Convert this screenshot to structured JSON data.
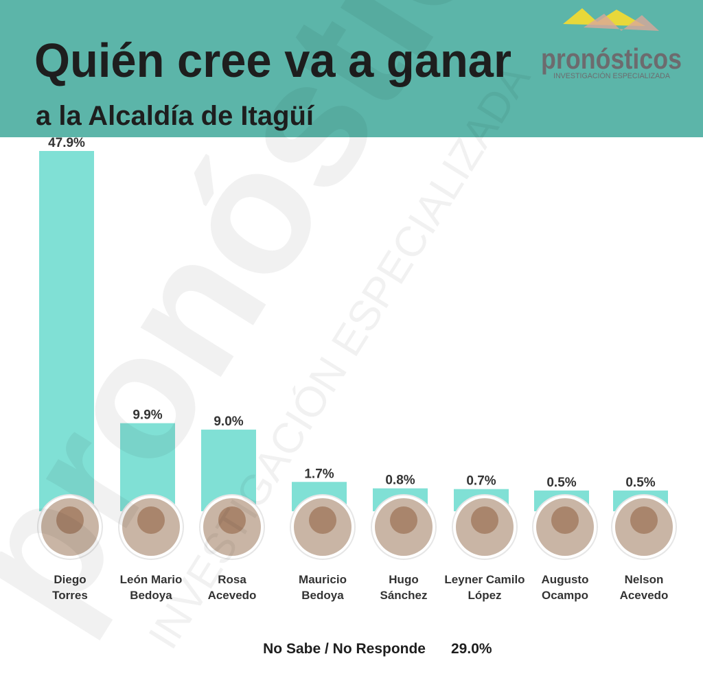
{
  "chart_data": {
    "type": "bar",
    "title": "Quién cree va a ganar",
    "subtitle": "a la Alcaldía de Itagüí",
    "brand": "pronósticos",
    "brand_tagline": "INVESTIGACIÓN ESPECIALIZADA",
    "categories": [
      [
        "Diego",
        "Torres"
      ],
      [
        "León Mario",
        "Bedoya"
      ],
      [
        "Rosa",
        "Acevedo"
      ],
      [
        "Mauricio",
        "Bedoya"
      ],
      [
        "Hugo",
        "Sánchez"
      ],
      [
        "Leyner Camilo",
        "López"
      ],
      [
        "Augusto",
        "Ocampo"
      ],
      [
        "Nelson",
        "Acevedo"
      ]
    ],
    "values": [
      47.9,
      9.9,
      9.0,
      1.7,
      0.8,
      0.7,
      0.5,
      0.5
    ],
    "value_labels": [
      "47.9%",
      "9.9%",
      "9.0%",
      "1.7%",
      "0.8%",
      "0.7%",
      "0.5%",
      "0.5%"
    ],
    "color": "#80e0d5",
    "note": {
      "label": "No Sabe / No Responde",
      "value_label": "29.0%"
    }
  }
}
